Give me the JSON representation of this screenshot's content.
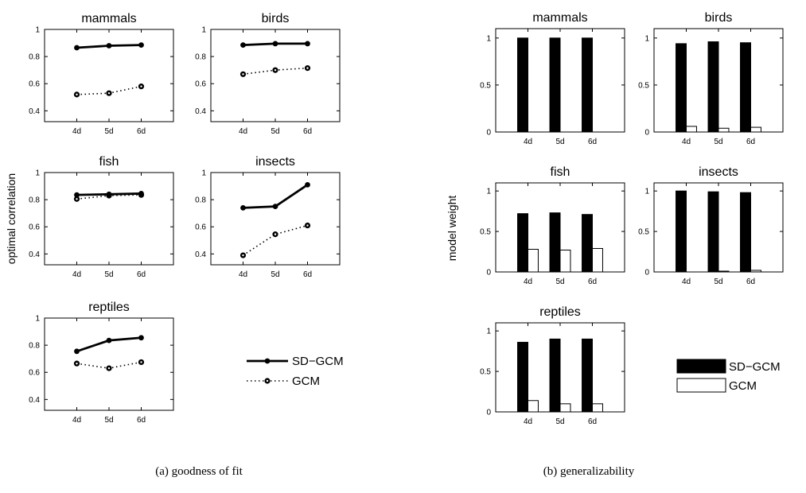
{
  "figure": {
    "caption_a": "(a) goodness of fit",
    "caption_b": "(b) generalizability",
    "ylabel_a": "optimal correlation",
    "ylabel_b": "model weight",
    "colors": {
      "sd_gcm": "#000000",
      "gcm": "#ffffff",
      "axis": "#000000"
    }
  },
  "chart_data": [
    {
      "type": "line",
      "id": "fit-mammals",
      "title": "mammals",
      "categories": [
        "4d",
        "5d",
        "6d"
      ],
      "yticks": [
        "0.4",
        "0.6",
        "0.8",
        "1"
      ],
      "ylim": [
        0.32,
        1.0
      ],
      "series": [
        {
          "name": "SD−GCM",
          "values": [
            0.865,
            0.88,
            0.885
          ]
        },
        {
          "name": "GCM",
          "values": [
            0.52,
            0.53,
            0.58
          ]
        }
      ]
    },
    {
      "type": "line",
      "id": "fit-birds",
      "title": "birds",
      "categories": [
        "4d",
        "5d",
        "6d"
      ],
      "yticks": [
        "0.4",
        "0.6",
        "0.8",
        "1"
      ],
      "ylim": [
        0.32,
        1.0
      ],
      "series": [
        {
          "name": "SD−GCM",
          "values": [
            0.885,
            0.895,
            0.895
          ]
        },
        {
          "name": "GCM",
          "values": [
            0.67,
            0.7,
            0.715
          ]
        }
      ]
    },
    {
      "type": "line",
      "id": "fit-fish",
      "title": "fish",
      "categories": [
        "4d",
        "5d",
        "6d"
      ],
      "yticks": [
        "0.4",
        "0.6",
        "0.8",
        "1"
      ],
      "ylim": [
        0.32,
        1.0
      ],
      "series": [
        {
          "name": "SD−GCM",
          "values": [
            0.835,
            0.84,
            0.845
          ]
        },
        {
          "name": "GCM",
          "values": [
            0.805,
            0.83,
            0.835
          ]
        }
      ]
    },
    {
      "type": "line",
      "id": "fit-insects",
      "title": "insects",
      "categories": [
        "4d",
        "5d",
        "6d"
      ],
      "yticks": [
        "0.4",
        "0.6",
        "0.8",
        "1"
      ],
      "ylim": [
        0.32,
        1.0
      ],
      "series": [
        {
          "name": "SD−GCM",
          "values": [
            0.74,
            0.75,
            0.91
          ]
        },
        {
          "name": "GCM",
          "values": [
            0.39,
            0.545,
            0.61
          ]
        }
      ]
    },
    {
      "type": "line",
      "id": "fit-reptiles",
      "title": "reptiles",
      "categories": [
        "4d",
        "5d",
        "6d"
      ],
      "yticks": [
        "0.4",
        "0.6",
        "0.8",
        "1"
      ],
      "ylim": [
        0.32,
        1.0
      ],
      "series": [
        {
          "name": "SD−GCM",
          "values": [
            0.755,
            0.835,
            0.855
          ]
        },
        {
          "name": "GCM",
          "values": [
            0.665,
            0.63,
            0.675
          ]
        }
      ]
    },
    {
      "type": "bar",
      "id": "gen-mammals",
      "title": "mammals",
      "categories": [
        "4d",
        "5d",
        "6d"
      ],
      "yticks": [
        "0",
        "0.5",
        "1"
      ],
      "ylim": [
        0,
        1.1
      ],
      "series": [
        {
          "name": "SD−GCM",
          "values": [
            1.0,
            1.0,
            1.0
          ]
        },
        {
          "name": "GCM",
          "values": [
            0.0,
            0.0,
            0.0
          ]
        }
      ]
    },
    {
      "type": "bar",
      "id": "gen-birds",
      "title": "birds",
      "categories": [
        "4d",
        "5d",
        "6d"
      ],
      "yticks": [
        "0",
        "0.5",
        "1"
      ],
      "ylim": [
        0,
        1.1
      ],
      "series": [
        {
          "name": "SD−GCM",
          "values": [
            0.94,
            0.96,
            0.95
          ]
        },
        {
          "name": "GCM",
          "values": [
            0.06,
            0.04,
            0.05
          ]
        }
      ]
    },
    {
      "type": "bar",
      "id": "gen-fish",
      "title": "fish",
      "categories": [
        "4d",
        "5d",
        "6d"
      ],
      "yticks": [
        "0",
        "0.5",
        "1"
      ],
      "ylim": [
        0,
        1.1
      ],
      "series": [
        {
          "name": "SD−GCM",
          "values": [
            0.72,
            0.73,
            0.71
          ]
        },
        {
          "name": "GCM",
          "values": [
            0.28,
            0.27,
            0.29
          ]
        }
      ]
    },
    {
      "type": "bar",
      "id": "gen-insects",
      "title": "insects",
      "categories": [
        "4d",
        "5d",
        "6d"
      ],
      "yticks": [
        "0",
        "0.5",
        "1"
      ],
      "ylim": [
        0,
        1.1
      ],
      "series": [
        {
          "name": "SD−GCM",
          "values": [
            1.0,
            0.99,
            0.98
          ]
        },
        {
          "name": "GCM",
          "values": [
            0.0,
            0.01,
            0.02
          ]
        }
      ]
    },
    {
      "type": "bar",
      "id": "gen-reptiles",
      "title": "reptiles",
      "categories": [
        "4d",
        "5d",
        "6d"
      ],
      "yticks": [
        "0",
        "0.5",
        "1"
      ],
      "ylim": [
        0,
        1.1
      ],
      "series": [
        {
          "name": "SD−GCM",
          "values": [
            0.86,
            0.9,
            0.9
          ]
        },
        {
          "name": "GCM",
          "values": [
            0.14,
            0.1,
            0.1
          ]
        }
      ]
    }
  ],
  "legend_a": [
    {
      "label": "SD−GCM",
      "style": "solid"
    },
    {
      "label": "GCM",
      "style": "dotted"
    }
  ],
  "legend_b": [
    {
      "label": "SD−GCM",
      "fill": "#000000"
    },
    {
      "label": "GCM",
      "fill": "#ffffff"
    }
  ]
}
